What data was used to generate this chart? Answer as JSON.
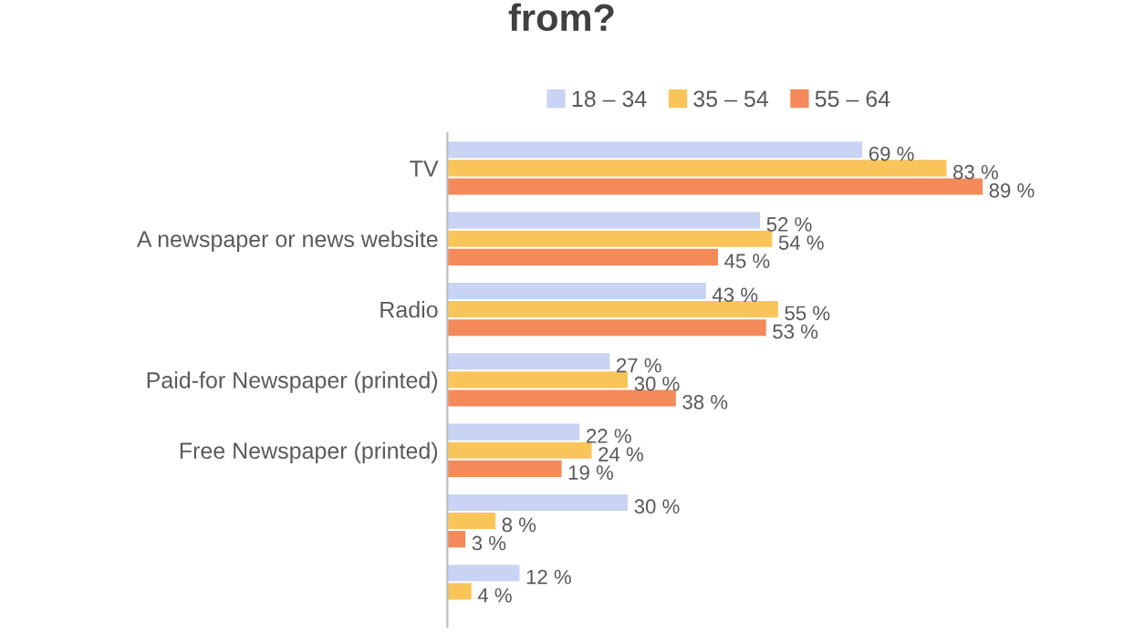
{
  "chart_data": {
    "type": "bar",
    "orientation": "horizontal",
    "title": "from?",
    "categories": [
      "TV",
      "A newspaper or news website",
      "Radio",
      "Paid-for Newspaper (printed)",
      "Free Newspaper (printed)",
      null,
      null
    ],
    "series": [
      {
        "name": "18 – 34",
        "color": "#c9d3f3",
        "values": [
          69,
          52,
          43,
          27,
          22,
          30,
          12
        ],
        "value_labels": [
          "69 %",
          "52 %",
          "43 %",
          "27 %",
          "22 %",
          "30 %",
          "12 %"
        ]
      },
      {
        "name": "35 – 54",
        "color": "#f9c55a",
        "values": [
          83,
          54,
          55,
          30,
          24,
          8,
          4
        ],
        "value_labels": [
          "83 %",
          "54 %",
          "55 %",
          "30 %",
          "24 %",
          "8 %",
          "4 %"
        ]
      },
      {
        "name": "55 – 64",
        "color": "#f4895a",
        "values": [
          89,
          45,
          53,
          38,
          19,
          3,
          null
        ],
        "value_labels": [
          "89 %",
          "45 %",
          "53 %",
          "38 %",
          "19 %",
          "3 %",
          null
        ]
      }
    ],
    "tick_labels": "y",
    "legend": "top",
    "grid": false
  }
}
